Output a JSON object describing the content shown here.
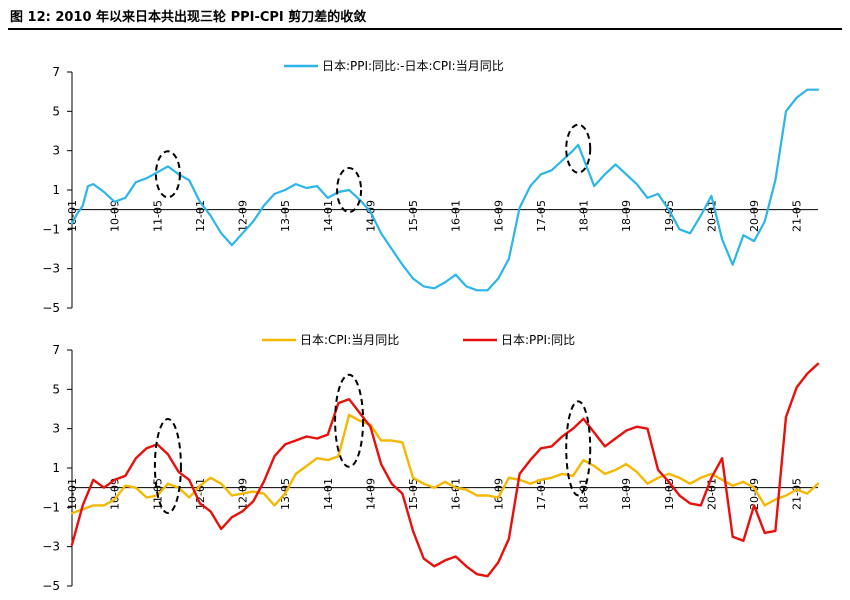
{
  "title": "图 12: 2010 年以来日本共出现三轮 PPI-CPI 剪刀差的收敛",
  "colors": {
    "spread": "#2BB5E8",
    "cpi": "#F5B800",
    "ppi": "#E8100C",
    "axis": "#000000",
    "annotation": "#000000"
  },
  "chart_data": [
    {
      "type": "line",
      "title": "",
      "legend": {
        "placement": "top-center",
        "entries": [
          "日本:PPI:同比:-日本:CPI:当月同比"
        ]
      },
      "xlabel": "",
      "ylabel": "",
      "ylim": [
        -5,
        7
      ],
      "yticks": [
        7,
        5,
        3,
        1,
        -1,
        -3,
        -5
      ],
      "xticks": [
        "10-01",
        "10-09",
        "11-05",
        "12-01",
        "12-09",
        "13-05",
        "14-01",
        "14-09",
        "15-05",
        "16-01",
        "16-09",
        "17-05",
        "18-01",
        "18-09",
        "19-05",
        "20-01",
        "20-09",
        "21-05"
      ],
      "x_range": [
        "2010-01",
        "2021-09"
      ],
      "grid": false,
      "annotations": [
        "dashed-ellipse 2011-07",
        "dashed-ellipse 2014-05",
        "dashed-ellipse 2017-12"
      ],
      "series": [
        {
          "name": "日本:PPI:同比:-日本:CPI:当月同比",
          "color": "#2BB5E8",
          "x": [
            "2010-01",
            "2010-02",
            "2010-03",
            "2010-04",
            "2010-05",
            "2010-07",
            "2010-09",
            "2010-11",
            "2011-01",
            "2011-03",
            "2011-05",
            "2011-07",
            "2011-09",
            "2011-11",
            "2012-01",
            "2012-03",
            "2012-05",
            "2012-07",
            "2012-09",
            "2012-11",
            "2013-01",
            "2013-03",
            "2013-05",
            "2013-07",
            "2013-09",
            "2013-11",
            "2014-01",
            "2014-03",
            "2014-05",
            "2014-07",
            "2014-09",
            "2014-11",
            "2015-01",
            "2015-03",
            "2015-05",
            "2015-07",
            "2015-09",
            "2015-11",
            "2016-01",
            "2016-03",
            "2016-05",
            "2016-07",
            "2016-09",
            "2016-11",
            "2017-01",
            "2017-03",
            "2017-05",
            "2017-07",
            "2017-09",
            "2017-11",
            "2017-12",
            "2018-01",
            "2018-03",
            "2018-05",
            "2018-07",
            "2018-09",
            "2018-11",
            "2019-01",
            "2019-03",
            "2019-05",
            "2019-07",
            "2019-09",
            "2019-11",
            "2020-01",
            "2020-03",
            "2020-05",
            "2020-07",
            "2020-09",
            "2020-11",
            "2021-01",
            "2021-03",
            "2021-05",
            "2021-07",
            "2021-09"
          ],
          "values": [
            -0.7,
            -0.2,
            0.2,
            1.2,
            1.3,
            0.9,
            0.4,
            0.6,
            1.4,
            1.6,
            1.9,
            2.2,
            1.8,
            1.5,
            0.4,
            -0.3,
            -1.2,
            -1.8,
            -1.2,
            -0.6,
            0.2,
            0.8,
            1.0,
            1.3,
            1.1,
            1.2,
            0.6,
            0.9,
            1.0,
            0.5,
            -0.1,
            -1.2,
            -2.0,
            -2.8,
            -3.5,
            -3.9,
            -4.0,
            -3.7,
            -3.3,
            -3.9,
            -4.1,
            -4.1,
            -3.5,
            -2.5,
            0.1,
            1.2,
            1.8,
            2.0,
            2.5,
            3.0,
            3.3,
            2.6,
            1.2,
            1.8,
            2.3,
            1.8,
            1.3,
            0.6,
            0.8,
            0.0,
            -1.0,
            -1.2,
            -0.3,
            0.7,
            -1.5,
            -2.8,
            -1.3,
            -1.6,
            -0.6,
            1.5,
            5.0,
            5.7,
            6.1,
            6.1
          ]
        }
      ]
    },
    {
      "type": "line",
      "title": "",
      "legend": {
        "placement": "top-center",
        "entries": [
          "日本:CPI:当月同比",
          "日本:PPI:同比"
        ]
      },
      "xlabel": "",
      "ylabel": "",
      "ylim": [
        -5,
        7
      ],
      "yticks": [
        7,
        5,
        3,
        1,
        -1,
        -3,
        -5
      ],
      "xticks": [
        "10-01",
        "10-09",
        "11-05",
        "12-01",
        "12-09",
        "13-05",
        "14-01",
        "14-09",
        "15-05",
        "16-01",
        "16-09",
        "17-05",
        "18-01",
        "18-09",
        "19-05",
        "20-01",
        "20-09",
        "21-05"
      ],
      "x_range": [
        "2010-01",
        "2021-09"
      ],
      "grid": false,
      "annotations": [
        "dashed-ellipse 2011-07",
        "dashed-ellipse 2014-05",
        "dashed-ellipse 2017-12"
      ],
      "series": [
        {
          "name": "日本:CPI:当月同比",
          "color": "#F5B800",
          "x": [
            "2010-01",
            "2010-03",
            "2010-05",
            "2010-07",
            "2010-09",
            "2010-11",
            "2011-01",
            "2011-03",
            "2011-05",
            "2011-07",
            "2011-09",
            "2011-11",
            "2012-01",
            "2012-03",
            "2012-05",
            "2012-07",
            "2012-09",
            "2012-11",
            "2013-01",
            "2013-03",
            "2013-05",
            "2013-07",
            "2013-09",
            "2013-11",
            "2014-01",
            "2014-03",
            "2014-05",
            "2014-07",
            "2014-09",
            "2014-11",
            "2015-01",
            "2015-03",
            "2015-05",
            "2015-07",
            "2015-09",
            "2015-11",
            "2016-01",
            "2016-03",
            "2016-05",
            "2016-07",
            "2016-09",
            "2016-11",
            "2017-01",
            "2017-03",
            "2017-05",
            "2017-07",
            "2017-09",
            "2017-11",
            "2018-01",
            "2018-03",
            "2018-05",
            "2018-07",
            "2018-09",
            "2018-11",
            "2019-01",
            "2019-03",
            "2019-05",
            "2019-07",
            "2019-09",
            "2019-11",
            "2020-01",
            "2020-03",
            "2020-05",
            "2020-07",
            "2020-09",
            "2020-11",
            "2021-01",
            "2021-03",
            "2021-05",
            "2021-07",
            "2021-09"
          ],
          "values": [
            -1.3,
            -1.1,
            -0.9,
            -0.9,
            -0.6,
            0.1,
            0.0,
            -0.5,
            -0.4,
            0.2,
            0.0,
            -0.5,
            0.1,
            0.5,
            0.2,
            -0.4,
            -0.3,
            -0.2,
            -0.3,
            -0.9,
            -0.3,
            0.7,
            1.1,
            1.5,
            1.4,
            1.6,
            3.7,
            3.4,
            3.2,
            2.4,
            2.4,
            2.3,
            0.5,
            0.2,
            0.0,
            0.3,
            0.0,
            -0.1,
            -0.4,
            -0.4,
            -0.5,
            0.5,
            0.4,
            0.2,
            0.4,
            0.5,
            0.7,
            0.6,
            1.4,
            1.1,
            0.7,
            0.9,
            1.2,
            0.8,
            0.2,
            0.5,
            0.7,
            0.5,
            0.2,
            0.5,
            0.7,
            0.4,
            0.1,
            0.3,
            0.0,
            -0.9,
            -0.6,
            -0.4,
            -0.1,
            -0.3,
            0.2
          ]
        },
        {
          "name": "日本:PPI:同比",
          "color": "#E8100C",
          "x": [
            "2010-01",
            "2010-03",
            "2010-05",
            "2010-07",
            "2010-09",
            "2010-11",
            "2011-01",
            "2011-03",
            "2011-05",
            "2011-07",
            "2011-09",
            "2011-11",
            "2012-01",
            "2012-03",
            "2012-05",
            "2012-07",
            "2012-09",
            "2012-11",
            "2013-01",
            "2013-03",
            "2013-05",
            "2013-07",
            "2013-09",
            "2013-11",
            "2014-01",
            "2014-03",
            "2014-05",
            "2014-07",
            "2014-09",
            "2014-11",
            "2015-01",
            "2015-03",
            "2015-05",
            "2015-07",
            "2015-09",
            "2015-11",
            "2016-01",
            "2016-03",
            "2016-05",
            "2016-07",
            "2016-09",
            "2016-11",
            "2017-01",
            "2017-03",
            "2017-05",
            "2017-07",
            "2017-09",
            "2017-11",
            "2018-01",
            "2018-03",
            "2018-05",
            "2018-07",
            "2018-09",
            "2018-11",
            "2019-01",
            "2019-03",
            "2019-05",
            "2019-07",
            "2019-09",
            "2019-11",
            "2020-01",
            "2020-03",
            "2020-05",
            "2020-07",
            "2020-09",
            "2020-11",
            "2021-01",
            "2021-03",
            "2021-05",
            "2021-07",
            "2021-09"
          ],
          "values": [
            -2.9,
            -0.9,
            0.4,
            0.0,
            0.4,
            0.6,
            1.5,
            2.0,
            2.2,
            1.7,
            0.8,
            0.4,
            -0.8,
            -1.2,
            -2.1,
            -1.5,
            -1.2,
            -0.7,
            0.3,
            1.6,
            2.2,
            2.4,
            2.6,
            2.5,
            2.7,
            4.3,
            4.5,
            3.8,
            3.1,
            1.2,
            0.2,
            -0.3,
            -2.2,
            -3.6,
            -4.0,
            -3.7,
            -3.5,
            -4.0,
            -4.4,
            -4.5,
            -3.8,
            -2.6,
            0.7,
            1.4,
            2.0,
            2.1,
            2.6,
            3.0,
            3.5,
            2.8,
            2.1,
            2.5,
            2.9,
            3.1,
            3.0,
            0.9,
            0.3,
            -0.4,
            -0.8,
            -0.9,
            0.5,
            1.5,
            -2.5,
            -2.7,
            -0.9,
            -2.3,
            -2.2,
            3.6,
            5.1,
            5.8,
            6.3
          ]
        }
      ]
    }
  ]
}
